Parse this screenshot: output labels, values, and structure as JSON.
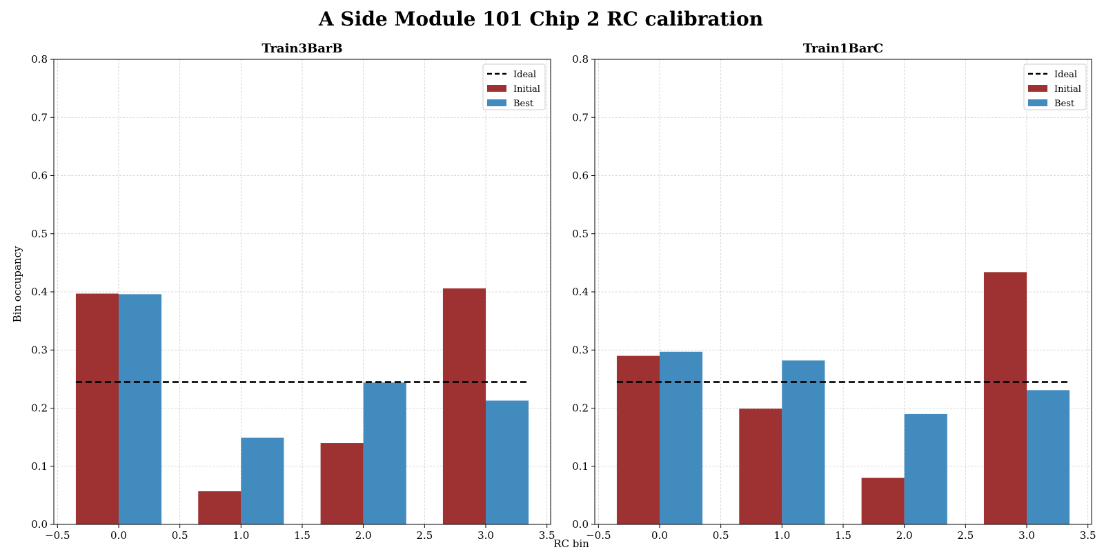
{
  "figure": {
    "title": "A Side Module 101 Chip 2 RC calibration",
    "xlabel": "RC bin",
    "ylabel": "Bin occupancy"
  },
  "colors": {
    "initial": "#9e3232",
    "best": "#428bbf",
    "ideal": "#000000",
    "grid": "#cccccc"
  },
  "chart_data": [
    {
      "type": "bar",
      "title": "Train3BarB",
      "x": [
        0,
        1,
        2,
        3
      ],
      "series": [
        {
          "name": "Initial",
          "values": [
            0.397,
            0.057,
            0.14,
            0.406
          ]
        },
        {
          "name": "Best",
          "values": [
            0.396,
            0.149,
            0.244,
            0.213
          ]
        }
      ],
      "ideal": {
        "name": "Ideal",
        "value": 0.245,
        "x_range": [
          -0.35,
          3.35
        ]
      },
      "bar_width": 0.35,
      "xlim": [
        -0.53,
        3.53
      ],
      "ylim": [
        0.0,
        0.8
      ],
      "xticks": [
        -0.5,
        0.0,
        0.5,
        1.0,
        1.5,
        2.0,
        2.5,
        3.0,
        3.5
      ],
      "xtick_labels": [
        "−0.5",
        "0.0",
        "0.5",
        "1.0",
        "1.5",
        "2.0",
        "2.5",
        "3.0",
        "3.5"
      ],
      "yticks": [
        0.0,
        0.1,
        0.2,
        0.3,
        0.4,
        0.5,
        0.6,
        0.7,
        0.8
      ],
      "ytick_labels": [
        "0.0",
        "0.1",
        "0.2",
        "0.3",
        "0.4",
        "0.5",
        "0.6",
        "0.7",
        "0.8"
      ],
      "grid": true,
      "legend": {
        "placement": "top-right",
        "entries": [
          "Ideal",
          "Initial",
          "Best"
        ]
      }
    },
    {
      "type": "bar",
      "title": "Train1BarC",
      "x": [
        0,
        1,
        2,
        3
      ],
      "series": [
        {
          "name": "Initial",
          "values": [
            0.29,
            0.199,
            0.08,
            0.434
          ]
        },
        {
          "name": "Best",
          "values": [
            0.297,
            0.282,
            0.19,
            0.231
          ]
        }
      ],
      "ideal": {
        "name": "Ideal",
        "value": 0.245,
        "x_range": [
          -0.35,
          3.35
        ]
      },
      "bar_width": 0.35,
      "xlim": [
        -0.53,
        3.53
      ],
      "ylim": [
        0.0,
        0.8
      ],
      "xticks": [
        -0.5,
        0.0,
        0.5,
        1.0,
        1.5,
        2.0,
        2.5,
        3.0,
        3.5
      ],
      "xtick_labels": [
        "−0.5",
        "0.0",
        "0.5",
        "1.0",
        "1.5",
        "2.0",
        "2.5",
        "3.0",
        "3.5"
      ],
      "yticks": [
        0.0,
        0.1,
        0.2,
        0.3,
        0.4,
        0.5,
        0.6,
        0.7,
        0.8
      ],
      "ytick_labels": [
        "0.0",
        "0.1",
        "0.2",
        "0.3",
        "0.4",
        "0.5",
        "0.6",
        "0.7",
        "0.8"
      ],
      "grid": true,
      "legend": {
        "placement": "top-right",
        "entries": [
          "Ideal",
          "Initial",
          "Best"
        ]
      }
    }
  ]
}
